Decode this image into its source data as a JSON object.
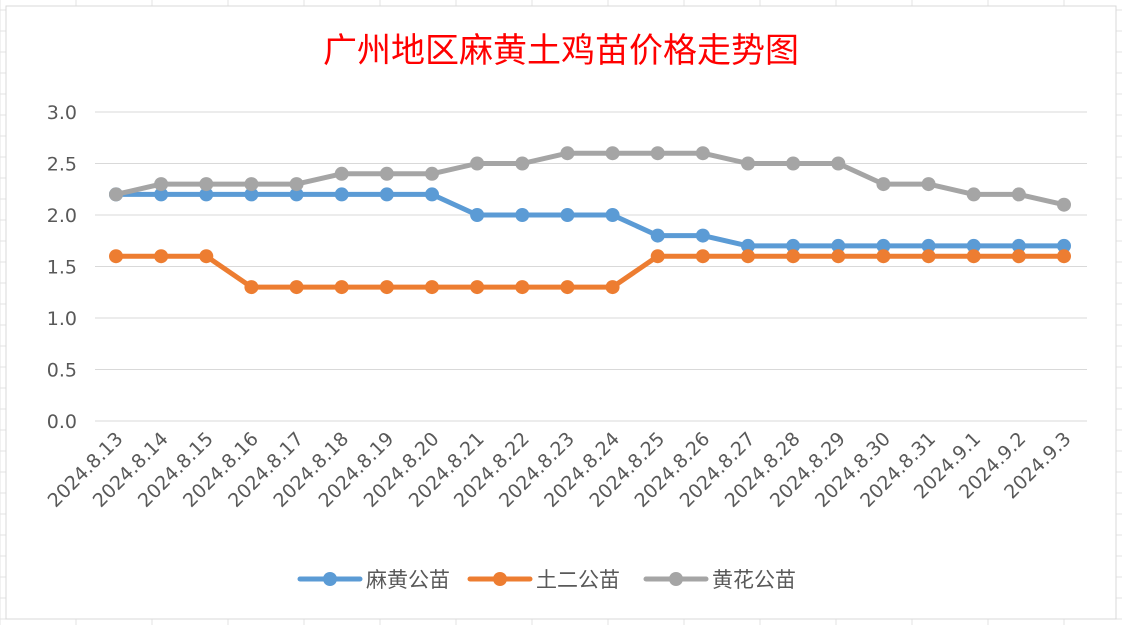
{
  "chart_data": {
    "type": "line",
    "title": "广州地区麻黄土鸡苗价格走势图",
    "xlabel": "",
    "ylabel": "",
    "ylim": [
      0,
      3
    ],
    "yticks": [
      "0.0",
      "0.5",
      "1.0",
      "1.5",
      "2.0",
      "2.5",
      "3.0"
    ],
    "grid": true,
    "legend_position": "bottom",
    "categories": [
      "2024.8.13",
      "2024.8.14",
      "2024.8.15",
      "2024.8.16",
      "2024.8.17",
      "2024.8.18",
      "2024.8.19",
      "2024.8.20",
      "2024.8.21",
      "2024.8.22",
      "2024.8.23",
      "2024.8.24",
      "2024.8.25",
      "2024.8.26",
      "2024.8.27",
      "2024.8.28",
      "2024.8.29",
      "2024.8.30",
      "2024.8.31",
      "2024.9.1",
      "2024.9.2",
      "2024.9.3"
    ],
    "series": [
      {
        "name": "麻黄公苗",
        "color": "#5b9bd5",
        "values": [
          2.2,
          2.2,
          2.2,
          2.2,
          2.2,
          2.2,
          2.2,
          2.2,
          2.0,
          2.0,
          2.0,
          2.0,
          1.8,
          1.8,
          1.7,
          1.7,
          1.7,
          1.7,
          1.7,
          1.7,
          1.7,
          1.7
        ]
      },
      {
        "name": "土二公苗",
        "color": "#ed7d31",
        "values": [
          1.6,
          1.6,
          1.6,
          1.3,
          1.3,
          1.3,
          1.3,
          1.3,
          1.3,
          1.3,
          1.3,
          1.3,
          1.6,
          1.6,
          1.6,
          1.6,
          1.6,
          1.6,
          1.6,
          1.6,
          1.6,
          1.6
        ]
      },
      {
        "name": "黄花公苗",
        "color": "#a5a5a5",
        "values": [
          2.2,
          2.3,
          2.3,
          2.3,
          2.3,
          2.4,
          2.4,
          2.4,
          2.5,
          2.5,
          2.6,
          2.6,
          2.6,
          2.6,
          2.5,
          2.5,
          2.5,
          2.3,
          2.3,
          2.2,
          2.2,
          2.1
        ]
      }
    ]
  }
}
